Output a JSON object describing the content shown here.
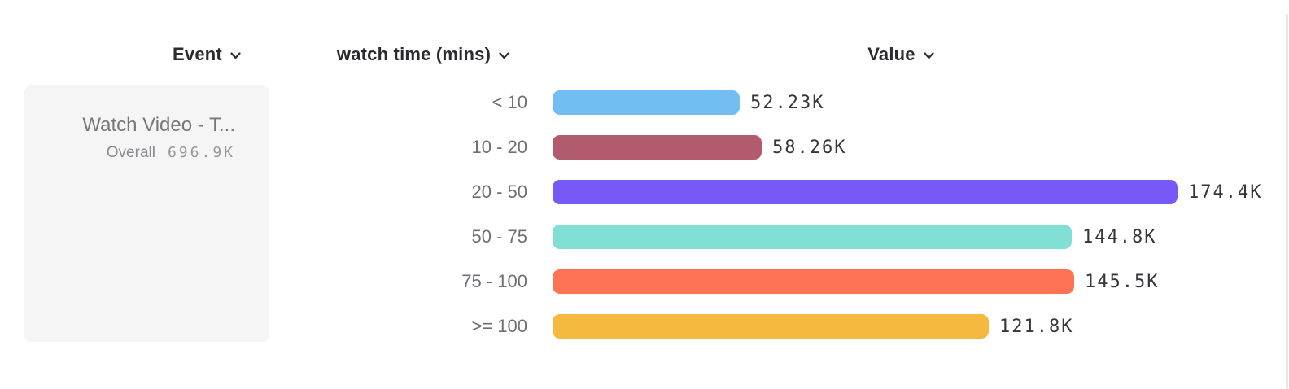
{
  "columns": {
    "event": {
      "label": "Event"
    },
    "breakdown": {
      "label": "watch time (mins)"
    },
    "value": {
      "label": "Value"
    }
  },
  "event_card": {
    "name": "Watch Video - T...",
    "overall_label": "Overall",
    "overall_value": "696.9K"
  },
  "chart_data": {
    "type": "bar",
    "orientation": "horizontal",
    "title": "",
    "xlabel": "Value",
    "ylabel": "watch time (mins)",
    "categories": [
      "< 10",
      "10 - 20",
      "20 - 50",
      "50 - 75",
      "75 - 100",
      ">= 100"
    ],
    "values": [
      52230,
      58260,
      174400,
      144800,
      145500,
      121800
    ],
    "value_labels": [
      "52.23K",
      "58.26K",
      "174.4K",
      "144.8K",
      "145.5K",
      "121.8K"
    ],
    "bar_colors": [
      "#72BDF2",
      "#B25A6E",
      "#7759F8",
      "#7FE0D3",
      "#FF7355",
      "#F6B93F"
    ],
    "xlim": [
      0,
      174400
    ],
    "grid": false,
    "legend": false
  },
  "colors": {
    "header_text": "#2B2B30",
    "category_text": "#6E6E73",
    "value_text": "#36363B",
    "card_bg": "#F5F5F6",
    "card_title_text": "#76767B",
    "divider": "#E7E7E9"
  }
}
